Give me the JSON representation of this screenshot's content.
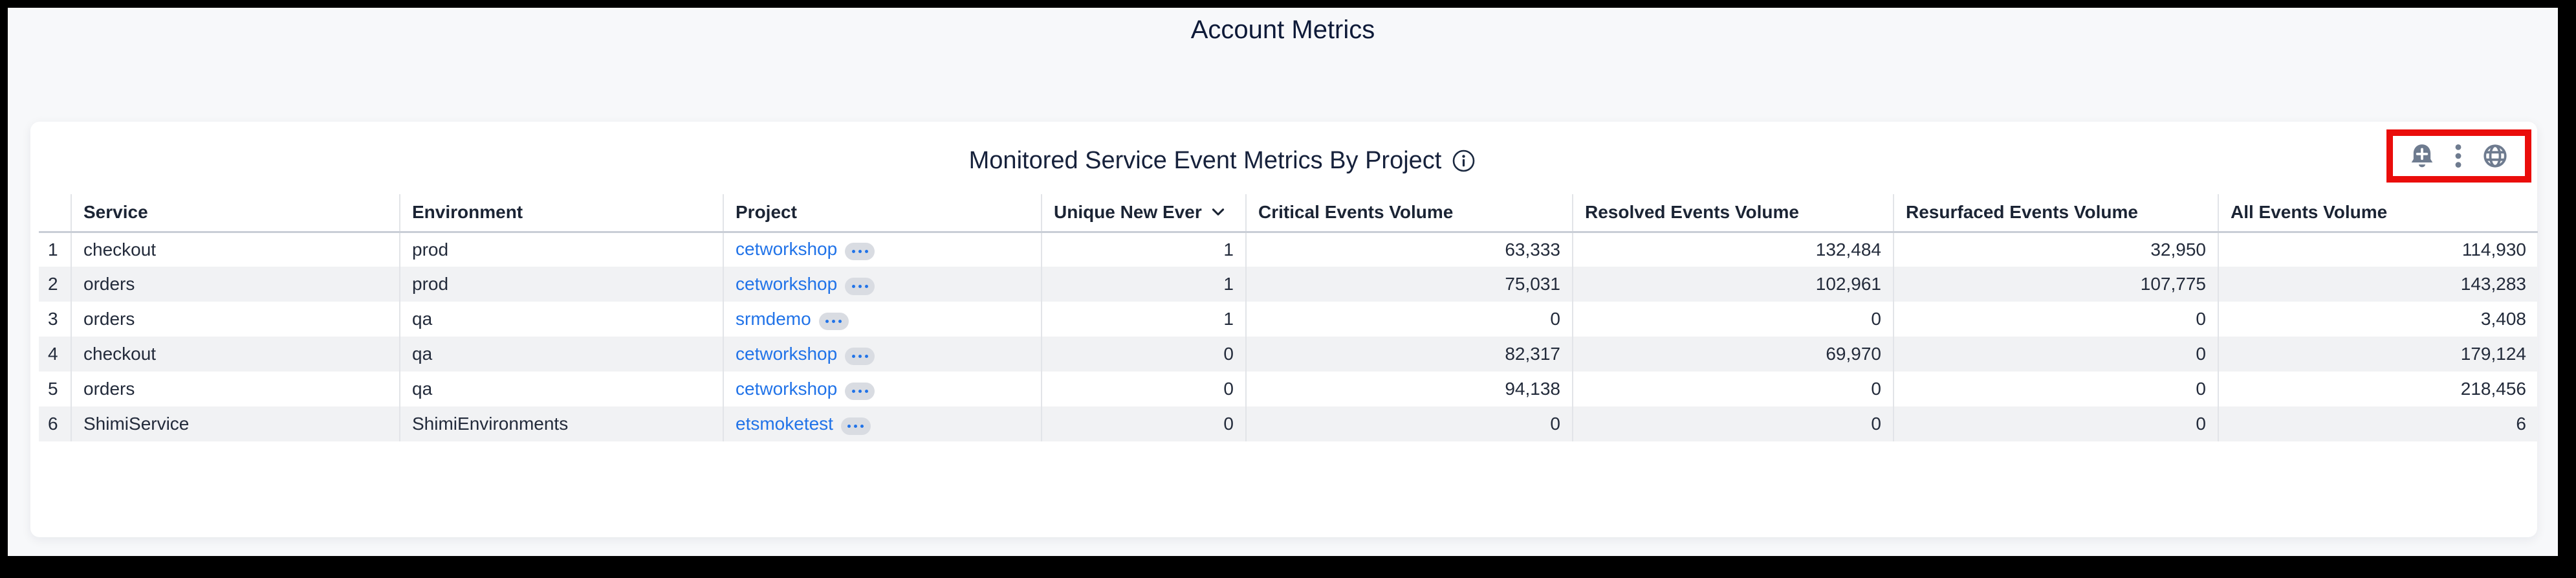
{
  "page": {
    "title": "Account Metrics"
  },
  "panel": {
    "title": "Monitored Service Event Metrics By Project",
    "title_icon": "info-icon",
    "action_icons": [
      "add-alert-bell-icon",
      "kebab-menu-icon",
      "globe-icon"
    ],
    "annotation": {
      "highlight_box_color": "#ea0d0b"
    }
  },
  "table": {
    "columns": [
      {
        "label": "Service",
        "field": "service",
        "align": "left"
      },
      {
        "label": "Environment",
        "field": "environment",
        "align": "left"
      },
      {
        "label": "Project",
        "field": "project",
        "align": "left",
        "type": "link",
        "link_menu_icon": "ellipsis-pill-icon"
      },
      {
        "label": "Unique New Ever",
        "field": "unique_new_ever",
        "align": "right",
        "sorted": "desc",
        "sort_icon": "chevron-down-icon"
      },
      {
        "label": "Critical Events Volume",
        "field": "critical_events_volume",
        "align": "right"
      },
      {
        "label": "Resolved Events Volume",
        "field": "resolved_events_volume",
        "align": "right"
      },
      {
        "label": "Resurfaced Events Volume",
        "field": "resurfaced_events_volume",
        "align": "right"
      },
      {
        "label": "All Events Volume",
        "field": "all_events_volume",
        "align": "right"
      }
    ],
    "rows": [
      {
        "num": "1",
        "service": "checkout",
        "environment": "prod",
        "project": "cetworkshop",
        "unique_new_ever": "1",
        "critical_events_volume": "63,333",
        "resolved_events_volume": "132,484",
        "resurfaced_events_volume": "32,950",
        "all_events_volume": "114,930"
      },
      {
        "num": "2",
        "service": "orders",
        "environment": "prod",
        "project": "cetworkshop",
        "unique_new_ever": "1",
        "critical_events_volume": "75,031",
        "resolved_events_volume": "102,961",
        "resurfaced_events_volume": "107,775",
        "all_events_volume": "143,283"
      },
      {
        "num": "3",
        "service": "orders",
        "environment": "qa",
        "project": "srmdemo",
        "unique_new_ever": "1",
        "critical_events_volume": "0",
        "resolved_events_volume": "0",
        "resurfaced_events_volume": "0",
        "all_events_volume": "3,408"
      },
      {
        "num": "4",
        "service": "checkout",
        "environment": "qa",
        "project": "cetworkshop",
        "unique_new_ever": "0",
        "critical_events_volume": "82,317",
        "resolved_events_volume": "69,970",
        "resurfaced_events_volume": "0",
        "all_events_volume": "179,124"
      },
      {
        "num": "5",
        "service": "orders",
        "environment": "qa",
        "project": "cetworkshop",
        "unique_new_ever": "0",
        "critical_events_volume": "94,138",
        "resolved_events_volume": "0",
        "resurfaced_events_volume": "0",
        "all_events_volume": "218,456"
      },
      {
        "num": "6",
        "service": "ShimiService",
        "environment": "ShimiEnvironments",
        "project": "etsmoketest",
        "unique_new_ever": "0",
        "critical_events_volume": "0",
        "resolved_events_volume": "0",
        "resurfaced_events_volume": "0",
        "all_events_volume": "6"
      }
    ]
  },
  "colors": {
    "page_background": "#f7f8fa",
    "card_background": "#ffffff",
    "link_blue": "#2173e8",
    "icon_slate": "#6e7b8f",
    "highlight_red": "#ea0d0b",
    "stripe_gray": "#f1f2f4"
  }
}
